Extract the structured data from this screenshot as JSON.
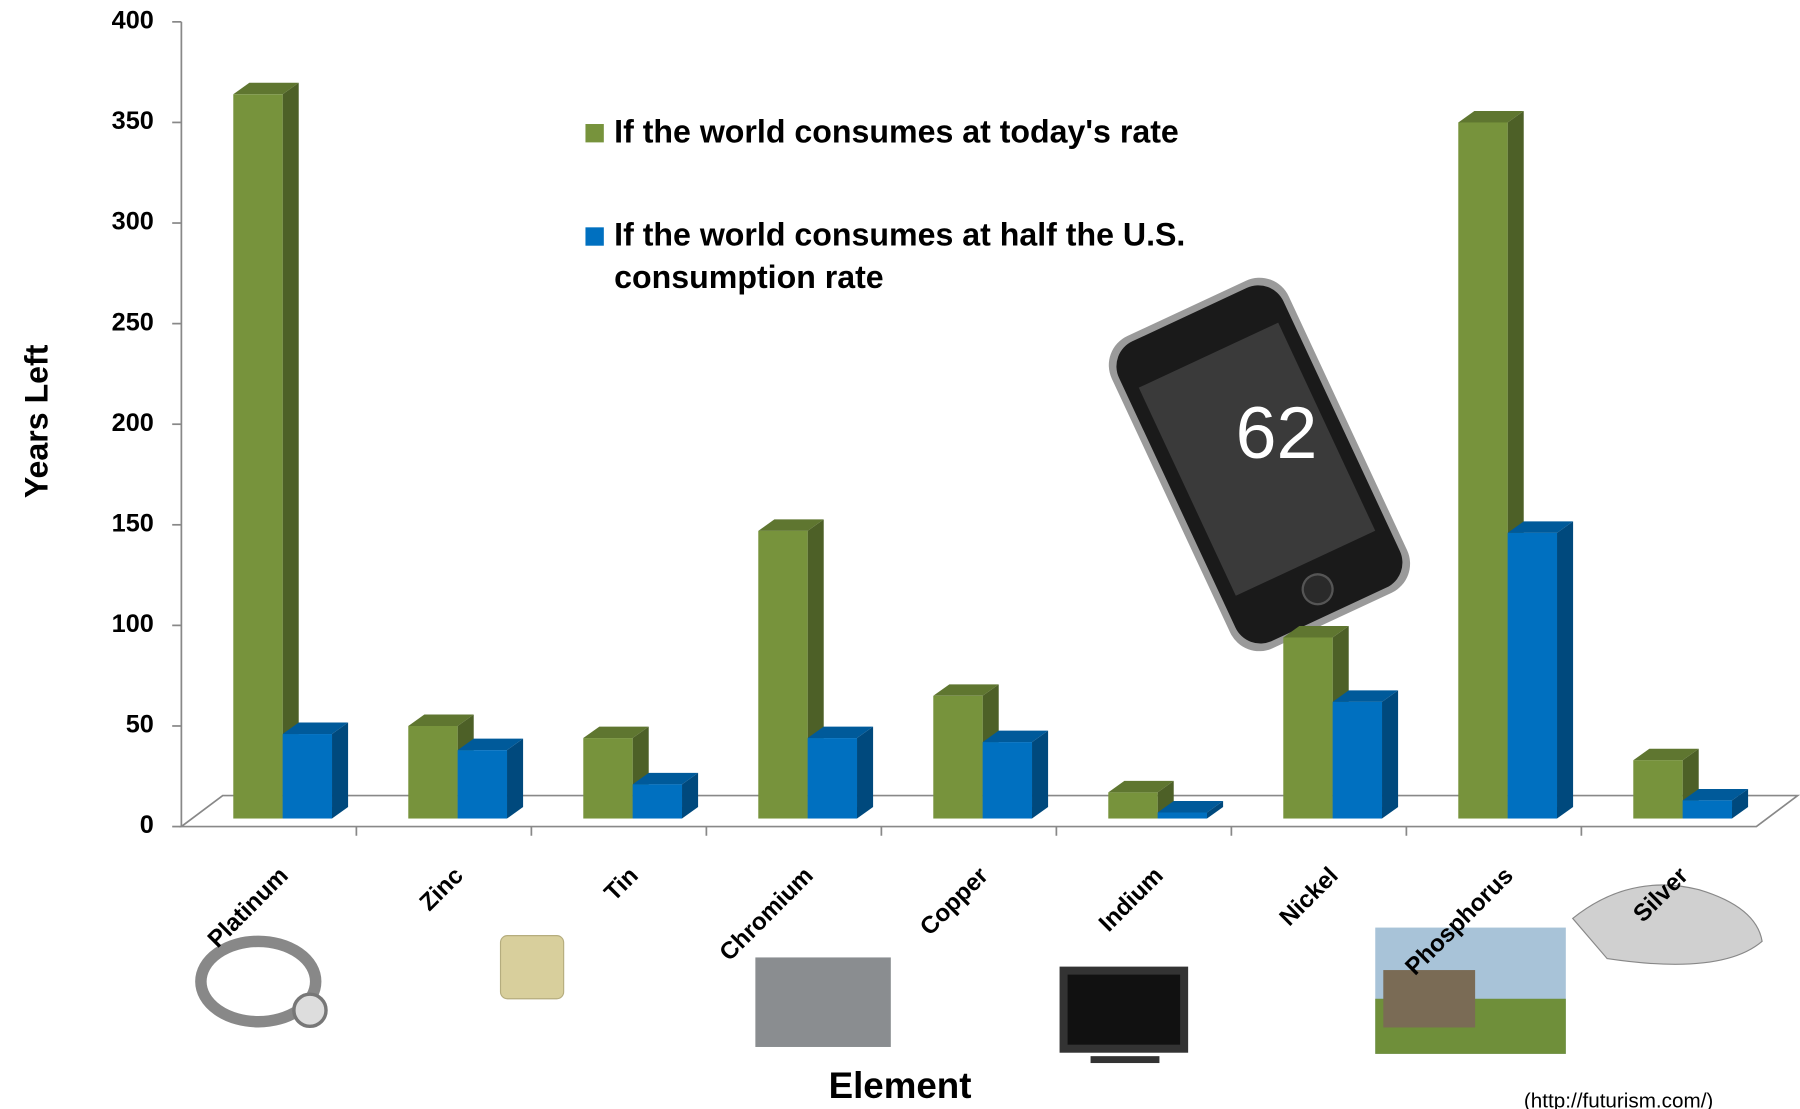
{
  "chart_data": {
    "type": "bar3d",
    "categories": [
      "Platinum",
      "Zinc",
      "Tin",
      "Chromium",
      "Copper",
      "Indium",
      "Nickel",
      "Phosphorus",
      "Silver"
    ],
    "series": [
      {
        "name": "If the world consumes at today's rate",
        "color": "#77933c",
        "values": [
          360,
          46,
          40,
          143,
          61,
          13,
          90,
          346,
          29
        ]
      },
      {
        "name": "If the world consumes at half the U.S. consumption rate",
        "color": "#0070c0",
        "values": [
          42,
          34,
          17,
          40,
          38,
          3,
          58,
          142,
          9
        ]
      }
    ],
    "ylim": [
      0,
      400
    ],
    "yticks": [
      0,
      50,
      100,
      150,
      200,
      250,
      300,
      350,
      400
    ],
    "y_label": "Years Left",
    "x_label": "Element",
    "annotation": "62",
    "source": "(http://futurism.com/)",
    "legend": "top-center"
  }
}
